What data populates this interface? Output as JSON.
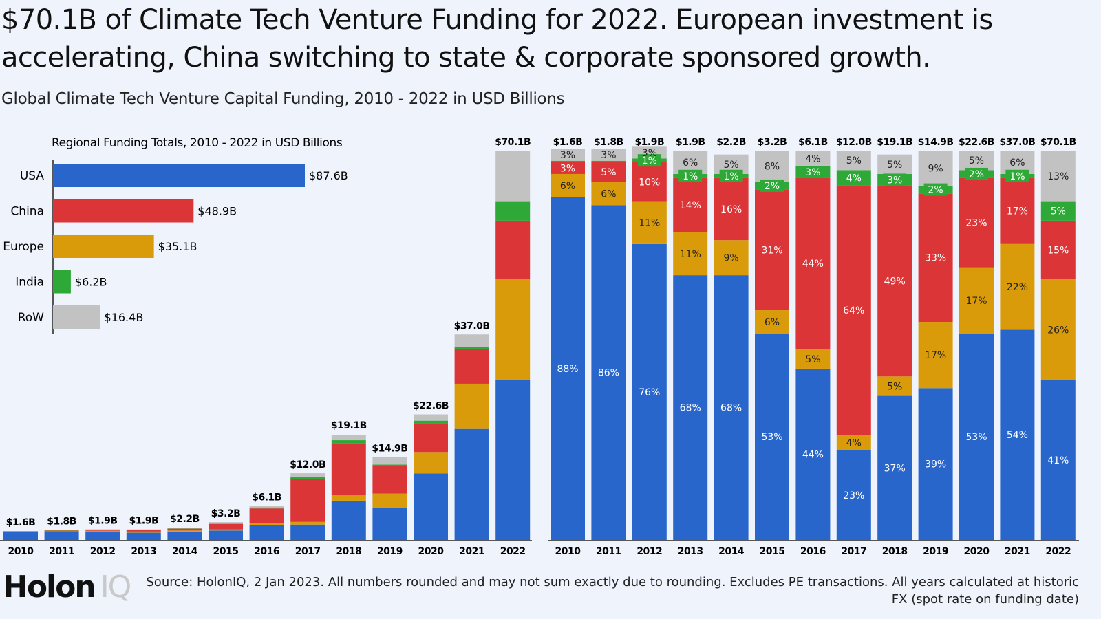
{
  "title": "$70.1B of Climate Tech Venture Funding for 2022. European investment is accelerating, China switching to state & corporate sponsored growth.",
  "subtitle": "Global Climate Tech Venture Capital Funding, 2010 - 2022 in USD Billions",
  "logo": {
    "main": "Holon",
    "suffix": "IQ"
  },
  "source": "Source: HolonIQ, 2 Jan 2023. All numbers rounded and may not sum exactly due to rounding. Excludes PE transactions. All years calculated at historic FX (spot rate on funding date)",
  "colors": {
    "USA": "#2966cc",
    "China": "#dc3538",
    "Europe": "#d99b0a",
    "India": "#2ea836",
    "RoW": "#c2c2c2"
  },
  "chart_data": [
    {
      "type": "bar",
      "stacked": true,
      "categories": [
        "2010",
        "2011",
        "2012",
        "2013",
        "2014",
        "2015",
        "2016",
        "2017",
        "2018",
        "2019",
        "2020",
        "2021",
        "2022"
      ],
      "totals": [
        1.6,
        1.8,
        1.9,
        1.9,
        2.2,
        3.2,
        6.1,
        12.0,
        19.1,
        14.9,
        22.6,
        37.0,
        70.1
      ],
      "total_labels": [
        "$1.6B",
        "$1.8B",
        "$1.9B",
        "$1.9B",
        "$2.2B",
        "$3.2B",
        "$6.1B",
        "$12.0B",
        "$19.1B",
        "$14.9B",
        "$22.6B",
        "$37.0B",
        "$70.1B"
      ],
      "ylim": [
        0,
        70.1
      ],
      "grid": false
    },
    {
      "type": "bar",
      "stacked": true,
      "normalized": true,
      "categories": [
        "2010",
        "2011",
        "2012",
        "2013",
        "2014",
        "2015",
        "2016",
        "2017",
        "2018",
        "2019",
        "2020",
        "2021",
        "2022"
      ],
      "total_labels": [
        "$1.6B",
        "$1.8B",
        "$1.9B",
        "$1.9B",
        "$2.2B",
        "$3.2B",
        "$6.1B",
        "$12.0B",
        "$19.1B",
        "$14.9B",
        "$22.6B",
        "$37.0B",
        "$70.1B"
      ],
      "unit": "%",
      "series": [
        {
          "name": "USA",
          "values": [
            88,
            86,
            76,
            68,
            68,
            53,
            44,
            23,
            37,
            39,
            53,
            54,
            41
          ]
        },
        {
          "name": "Europe",
          "values": [
            6,
            6,
            11,
            11,
            9,
            6,
            5,
            4,
            5,
            17,
            17,
            22,
            26
          ]
        },
        {
          "name": "China",
          "values": [
            3,
            5,
            10,
            14,
            16,
            31,
            44,
            64,
            49,
            33,
            23,
            17,
            15
          ]
        },
        {
          "name": "India",
          "values": [
            0.4,
            0.4,
            1,
            1,
            1,
            2,
            3,
            4,
            3,
            2,
            2,
            1,
            5
          ]
        },
        {
          "name": "RoW",
          "values": [
            3,
            3,
            3,
            6,
            5,
            8,
            4,
            5,
            5,
            9,
            5,
            6,
            13
          ]
        }
      ],
      "ylim": [
        0,
        100
      ],
      "grid": false
    },
    {
      "type": "bar",
      "orientation": "horizontal",
      "title": "Regional Funding Totals, 2010 - 2022 in USD Billions",
      "categories": [
        "USA",
        "China",
        "Europe",
        "India",
        "RoW"
      ],
      "values": [
        87.6,
        48.9,
        35.1,
        6.2,
        16.4
      ],
      "value_labels": [
        "$87.6B",
        "$48.9B",
        "$35.1B",
        "$6.2B",
        "$16.4B"
      ]
    }
  ]
}
